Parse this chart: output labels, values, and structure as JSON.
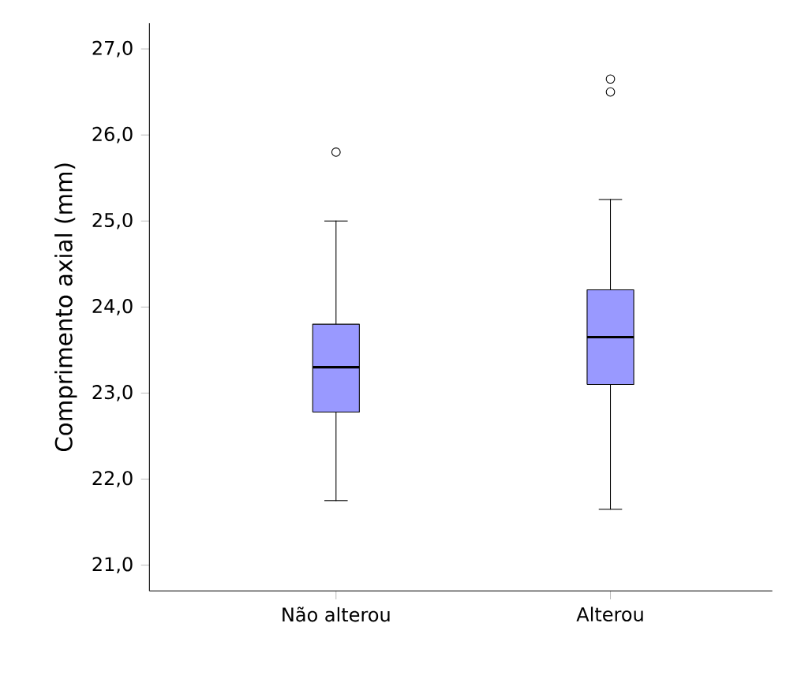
{
  "chart_data": {
    "type": "box",
    "ylabel": "Comprimento axial (mm)",
    "categories": [
      "Não alterou",
      "Alterou"
    ],
    "color": "#9999ff",
    "boxes": [
      {
        "low": 21.75,
        "q1": 22.78,
        "median": 23.3,
        "q3": 23.8,
        "high": 25.0,
        "outliers": [
          25.8
        ]
      },
      {
        "low": 21.65,
        "q1": 23.1,
        "median": 23.65,
        "q3": 24.2,
        "high": 25.25,
        "outliers": [
          26.65,
          26.5
        ]
      }
    ],
    "ylim": [
      20.7,
      27.3
    ],
    "yticks": [
      {
        "value": 21,
        "label": "21,0"
      },
      {
        "value": 22,
        "label": "22,0"
      },
      {
        "value": 23,
        "label": "23,0"
      },
      {
        "value": 24,
        "label": "24,0"
      },
      {
        "value": 25,
        "label": "25,0"
      },
      {
        "value": 26,
        "label": "26,0"
      },
      {
        "value": 27,
        "label": "27,0"
      }
    ],
    "grid": false
  }
}
